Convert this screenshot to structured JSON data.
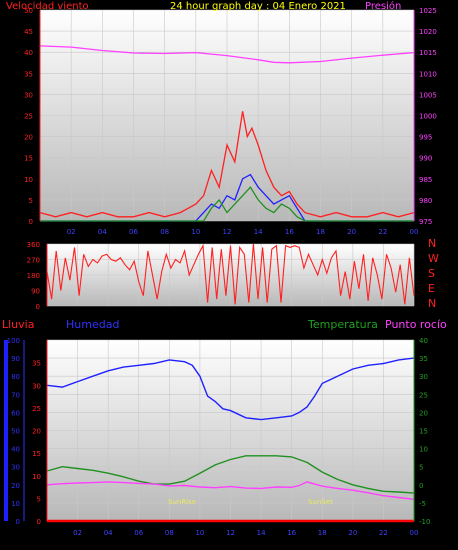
{
  "colors": {
    "wind": "#ff2020",
    "pressure": "#ff40ff",
    "humidity": "#2020ff",
    "temperature": "#209020",
    "dewpoint": "#ff40ff",
    "rain": "#ff0000",
    "sun": "#e8e860",
    "title": "#ffff00",
    "direction": "#ff2020"
  },
  "chart_data": [
    {
      "type": "line",
      "title": "24 hour graph day : 04 Enero 2021",
      "ylabel_left": "Velocidad viento",
      "ylabel_right": "Presión",
      "y_left_ticks": [
        "0",
        "5",
        "10",
        "15",
        "20",
        "25",
        "30",
        "35",
        "40",
        "45",
        "50"
      ],
      "y_right_ticks": [
        "975",
        "980",
        "985",
        "990",
        "995",
        "1000",
        "1005",
        "1010",
        "1015",
        "1020",
        "1025"
      ],
      "x_ticks": [
        "02",
        "04",
        "06",
        "08",
        "10",
        "12",
        "14",
        "16",
        "18",
        "20",
        "22",
        "00"
      ],
      "ylim_left": [
        0,
        50
      ],
      "ylim_right": [
        975,
        1025
      ],
      "series": [
        {
          "axis": "right",
          "color": "pressure",
          "x": [
            0,
            2,
            4,
            6,
            8,
            10,
            12,
            14,
            15,
            16,
            18,
            20,
            22,
            24
          ],
          "values": [
            1016.5,
            1016.2,
            1015.4,
            1014.8,
            1014.7,
            1014.9,
            1014.2,
            1013.2,
            1012.6,
            1012.5,
            1012.8,
            1013.6,
            1014.3,
            1014.9
          ]
        },
        {
          "axis": "left",
          "color": "wind",
          "x": [
            0,
            1,
            2,
            3,
            4,
            5,
            6,
            7,
            8,
            9,
            10,
            10.5,
            11,
            11.5,
            12,
            12.5,
            13,
            13.3,
            13.6,
            14,
            14.5,
            15,
            15.5,
            16,
            16.5,
            17,
            18,
            19,
            20,
            21,
            22,
            23,
            24
          ],
          "values": [
            2,
            1,
            2,
            1,
            2,
            1,
            1,
            2,
            1,
            2,
            4,
            6,
            12,
            8,
            18,
            14,
            26,
            20,
            22,
            18,
            12,
            8,
            6,
            7,
            4,
            2,
            1,
            2,
            1,
            1,
            2,
            1,
            2
          ]
        },
        {
          "axis": "left",
          "color": "humidity",
          "x": [
            0,
            10,
            10.5,
            11,
            11.5,
            12,
            12.5,
            13,
            13.5,
            14,
            14.5,
            15,
            15.5,
            16,
            16.5,
            17,
            24
          ],
          "values": [
            0,
            0,
            2,
            4,
            3,
            6,
            5,
            10,
            11,
            8,
            6,
            4,
            5,
            6,
            3,
            0,
            0
          ]
        },
        {
          "axis": "left",
          "color": "temperature",
          "x": [
            0,
            10.5,
            11,
            11.5,
            12,
            12.5,
            13,
            13.5,
            14,
            14.5,
            15,
            15.5,
            16,
            16.5,
            17,
            24
          ],
          "values": [
            0,
            0,
            3,
            5,
            2,
            4,
            6,
            8,
            5,
            3,
            2,
            4,
            3,
            1,
            0,
            0
          ]
        }
      ]
    },
    {
      "type": "line",
      "title": "",
      "y_ticks": [
        "0",
        "90",
        "180",
        "270",
        "360"
      ],
      "direction_labels": [
        "N",
        "W",
        "S",
        "E",
        "N"
      ],
      "ylim": [
        0,
        360
      ],
      "series": [
        {
          "name": "",
          "color": "direction",
          "x": [
            0,
            0.3,
            0.6,
            0.9,
            1.2,
            1.5,
            1.8,
            2.1,
            2.4,
            2.7,
            3,
            3.3,
            3.6,
            3.9,
            4.2,
            4.5,
            4.8,
            5.1,
            5.4,
            5.7,
            6,
            6.3,
            6.6,
            6.9,
            7.2,
            7.5,
            7.8,
            8.1,
            8.4,
            8.7,
            9,
            9.3,
            9.6,
            9.9,
            10.2,
            10.5,
            10.8,
            11.1,
            11.4,
            11.7,
            12,
            12.3,
            12.6,
            12.9,
            13.2,
            13.5,
            13.8,
            14.1,
            14.4,
            14.7,
            15,
            15.3,
            15.6,
            15.9,
            16.2,
            16.5,
            16.8,
            17.1,
            17.4,
            17.7,
            18,
            18.3,
            18.6,
            18.9,
            19.2,
            19.5,
            19.8,
            20.1,
            20.4,
            20.7,
            21,
            21.3,
            21.6,
            21.9,
            22.2,
            22.5,
            22.8,
            23.1,
            23.4,
            23.7,
            24
          ],
          "values": [
            200,
            40,
            320,
            90,
            280,
            150,
            340,
            60,
            300,
            230,
            270,
            250,
            290,
            300,
            270,
            260,
            280,
            240,
            210,
            260,
            140,
            60,
            320,
            180,
            40,
            200,
            300,
            220,
            270,
            250,
            320,
            180,
            240,
            300,
            350,
            20,
            340,
            40,
            330,
            60,
            350,
            10,
            340,
            300,
            20,
            360,
            40,
            340,
            20,
            330,
            350,
            20,
            350,
            340,
            350,
            340,
            220,
            300,
            240,
            180,
            270,
            190,
            280,
            320,
            60,
            200,
            40,
            260,
            100,
            300,
            30,
            280,
            180,
            40,
            300,
            220,
            80,
            240,
            10,
            280,
            60
          ]
        }
      ]
    },
    {
      "type": "line",
      "title": "",
      "ylabel_rain": "Lluvia",
      "ylabel_humidity": "Humedad",
      "ylabel_temperature": "Temperatura",
      "ylabel_dewpoint": "Punto rocío",
      "annotations": [
        "SunRise",
        "SunSet"
      ],
      "y_rain_ticks": [
        "0",
        "5",
        "10",
        "15",
        "20",
        "25",
        "30",
        "35"
      ],
      "y_humidity_ticks": [
        "0",
        "10",
        "20",
        "30",
        "40",
        "50",
        "60",
        "70",
        "80",
        "90",
        "100"
      ],
      "y_temp_ticks": [
        "-10",
        "-5",
        "0",
        "5",
        "10",
        "15",
        "20",
        "25",
        "30",
        "35",
        "40"
      ],
      "ylim_temp": [
        -10,
        40
      ],
      "ylim_humidity": [
        0,
        100
      ],
      "x_ticks": [
        "02",
        "04",
        "06",
        "08",
        "10",
        "12",
        "14",
        "16",
        "18",
        "20",
        "22",
        "00"
      ],
      "series": [
        {
          "name": "",
          "color": "humidity",
          "x": [
            0,
            1,
            2,
            3,
            4,
            5,
            6,
            7,
            8,
            9,
            9.5,
            10,
            10.5,
            11,
            11.5,
            12,
            13,
            14,
            15,
            16,
            16.5,
            17,
            17.5,
            18,
            19,
            20,
            21,
            22,
            23,
            24
          ],
          "values": [
            75,
            74,
            77,
            80,
            83,
            85,
            86,
            87,
            89,
            88,
            86,
            80,
            69,
            66,
            62,
            61,
            57,
            56,
            57,
            58,
            60,
            63,
            69,
            76,
            80,
            84,
            86,
            87,
            89,
            90
          ]
        },
        {
          "name": "",
          "color": "temperature",
          "x": [
            0,
            1,
            2,
            3,
            4,
            5,
            6,
            7,
            8,
            9,
            10,
            11,
            12,
            13,
            14,
            15,
            16,
            17,
            18,
            19,
            20,
            21,
            22,
            23,
            24
          ],
          "values": [
            3.8,
            5,
            4.5,
            4,
            3.2,
            2.2,
            1,
            0.2,
            0.2,
            1,
            3.2,
            5.5,
            7,
            8,
            8,
            8,
            7.7,
            6.2,
            3.5,
            1.5,
            0,
            -1,
            -1.8,
            -2,
            -2.3
          ]
        },
        {
          "name": "",
          "color": "dewpoint",
          "x": [
            0,
            1,
            2,
            3,
            4,
            5,
            6,
            7,
            8,
            9,
            10,
            11,
            12,
            13,
            14,
            15,
            16,
            16.5,
            17,
            18,
            19,
            20,
            21,
            22,
            23,
            24
          ],
          "values": [
            0,
            0.3,
            0.5,
            0.6,
            0.8,
            0.6,
            0.4,
            0.2,
            -0.3,
            -0.2,
            -0.6,
            -0.8,
            -0.5,
            -0.9,
            -1.0,
            -0.6,
            -0.7,
            -0.2,
            0.8,
            -0.4,
            -1,
            -1.5,
            -2.2,
            -3,
            -3.5,
            -4
          ]
        },
        {
          "name": "",
          "color": "rain",
          "x": [
            0,
            24
          ],
          "values": [
            0,
            0
          ]
        }
      ]
    }
  ]
}
